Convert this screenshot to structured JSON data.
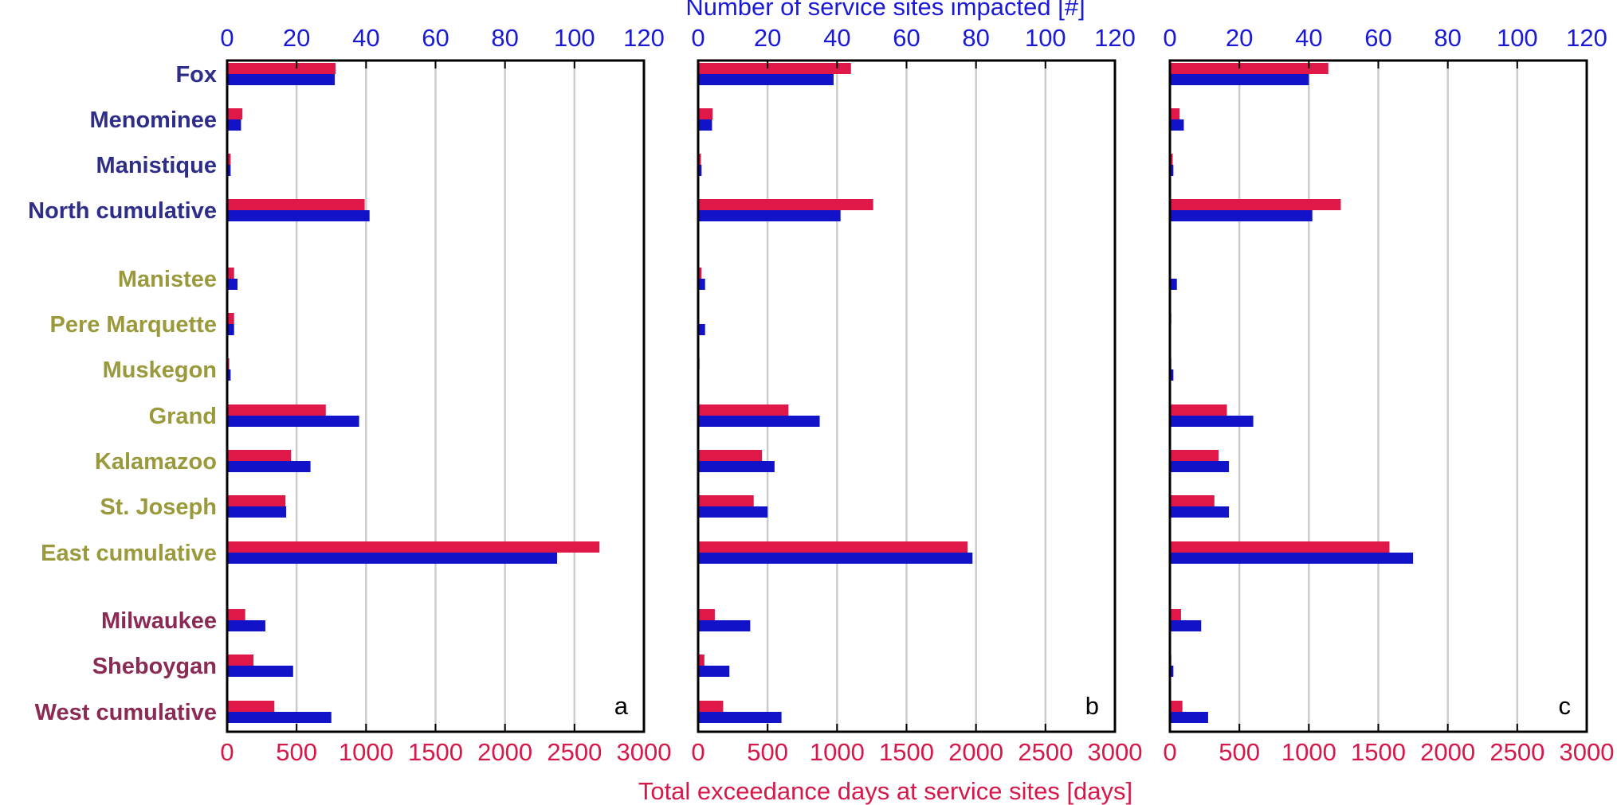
{
  "chart_data": {
    "type": "bar",
    "orientation": "horizontal",
    "top_axis_label": "Number of service sites impacted [#]",
    "bottom_axis_label": "Total exceedance days at service sites [days]",
    "top_axis": {
      "range": [
        0,
        120
      ],
      "ticks": [
        "0",
        "20",
        "40",
        "60",
        "80",
        "100",
        "120"
      ]
    },
    "bottom_axis": {
      "range": [
        0,
        3000
      ],
      "ticks": [
        "0",
        "500",
        "1000",
        "1500",
        "2000",
        "2500",
        "3000"
      ]
    },
    "grid": true,
    "colors": {
      "days": "#e0184a",
      "sites": "#1212c8",
      "north": "#2e2e8a",
      "east": "#9a9a3c",
      "west": "#8a2a55",
      "grid": "#cccccc"
    },
    "categories": [
      {
        "label": "Fox",
        "group": "north"
      },
      {
        "label": "Menominee",
        "group": "north"
      },
      {
        "label": "Manistique",
        "group": "north"
      },
      {
        "label": "North cumulative",
        "group": "north"
      },
      {
        "label": "Manistee",
        "group": "east"
      },
      {
        "label": "Pere Marquette",
        "group": "east"
      },
      {
        "label": "Muskegon",
        "group": "east"
      },
      {
        "label": "Grand",
        "group": "east"
      },
      {
        "label": "Kalamazoo",
        "group": "east"
      },
      {
        "label": "St. Joseph",
        "group": "east"
      },
      {
        "label": "East cumulative",
        "group": "east"
      },
      {
        "label": "Milwaukee",
        "group": "west"
      },
      {
        "label": "Sheboygan",
        "group": "west"
      },
      {
        "label": "West cumulative",
        "group": "west"
      }
    ],
    "panels": [
      {
        "letter": "a",
        "days": [
          780,
          110,
          25,
          990,
          50,
          50,
          15,
          710,
          460,
          420,
          2680,
          130,
          190,
          340
        ],
        "sites": [
          31,
          4,
          1,
          41,
          3,
          2,
          1,
          38,
          24,
          17,
          95,
          11,
          19,
          30
        ]
      },
      {
        "letter": "b",
        "days": [
          1100,
          105,
          20,
          1260,
          25,
          0,
          10,
          650,
          460,
          400,
          1940,
          120,
          45,
          180
        ],
        "sites": [
          39,
          4,
          1,
          41,
          2,
          2,
          0,
          35,
          22,
          20,
          79,
          15,
          9,
          24
        ]
      },
      {
        "letter": "c",
        "days": [
          1140,
          70,
          20,
          1230,
          0,
          10,
          10,
          410,
          350,
          320,
          1580,
          80,
          10,
          90
        ],
        "sites": [
          40,
          4,
          1,
          41,
          2,
          0,
          1,
          24,
          17,
          17,
          70,
          9,
          1,
          11
        ]
      }
    ]
  }
}
